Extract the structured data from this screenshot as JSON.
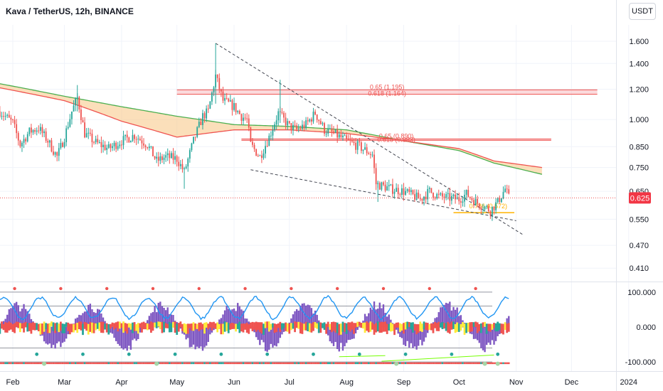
{
  "header": {
    "title": "Kava / TetherUS, 12h, BINANCE",
    "currency_button": "USDT"
  },
  "colors": {
    "up": "#26a69a",
    "down": "#ef5350",
    "ma_fast": "#ef5350",
    "ma_slow": "#4caf50",
    "fill": "#f8c98c",
    "fib_band": "#f8b9bd",
    "purple": "#7e57c2",
    "osc_blue": "#2196f3"
  },
  "chart_data": [
    {
      "type": "candlestick",
      "title": "Kava / TetherUS, 12h, BINANCE",
      "y_scale": "log",
      "ylim": [
        0.38,
        1.75
      ],
      "y_ticks": [
        "1.600",
        "1.400",
        "1.200",
        "1.000",
        "0.850",
        "0.750",
        "0.650",
        "0.550",
        "0.470",
        "0.410"
      ],
      "x_ticks": [
        "Feb",
        "Mar",
        "Apr",
        "May",
        "Jun",
        "Jul",
        "Aug",
        "Sep",
        "Oct",
        "Nov",
        "Dec",
        "2024"
      ],
      "last_price": "0.625",
      "price_path": [
        [
          "Jan 25",
          1.05
        ],
        [
          "Feb 1",
          0.98
        ],
        [
          "Feb 5",
          0.86
        ],
        [
          "Feb 10",
          0.93
        ],
        [
          "Feb 15",
          0.95
        ],
        [
          "Feb 20",
          0.88
        ],
        [
          "Feb 25",
          0.8
        ],
        [
          "Mar 1",
          0.9
        ],
        [
          "Mar 5",
          1.05
        ],
        [
          "Mar 8",
          1.14
        ],
        [
          "Mar 12",
          0.92
        ],
        [
          "Mar 18",
          0.87
        ],
        [
          "Mar 25",
          0.84
        ],
        [
          "Apr 1",
          0.88
        ],
        [
          "Apr 8",
          0.91
        ],
        [
          "Apr 15",
          0.86
        ],
        [
          "Apr 20",
          0.78
        ],
        [
          "Apr 25",
          0.8
        ],
        [
          "May 1",
          0.79
        ],
        [
          "May 5",
          0.73
        ],
        [
          "May 10",
          0.88
        ],
        [
          "May 15",
          1.02
        ],
        [
          "May 18",
          1.05
        ],
        [
          "May 22",
          1.3
        ],
        [
          "May 26",
          1.12
        ],
        [
          "Jun 1",
          1.08
        ],
        [
          "Jun 5",
          1.02
        ],
        [
          "Jun 8",
          1.0
        ],
        [
          "Jun 10",
          0.86
        ],
        [
          "Jun 15",
          0.8
        ],
        [
          "Jun 20",
          0.9
        ],
        [
          "Jun 25",
          1.04
        ],
        [
          "Jul 1",
          0.96
        ],
        [
          "Jul 5",
          0.94
        ],
        [
          "Jul 10",
          0.97
        ],
        [
          "Jul 15",
          1.04
        ],
        [
          "Jul 20",
          0.94
        ],
        [
          "Jul 25",
          0.92
        ],
        [
          "Aug 1",
          0.88
        ],
        [
          "Aug 8",
          0.85
        ],
        [
          "Aug 15",
          0.81
        ],
        [
          "Aug 17",
          0.68
        ],
        [
          "Aug 25",
          0.66
        ],
        [
          "Sep 1",
          0.65
        ],
        [
          "Sep 10",
          0.62
        ],
        [
          "Sep 15",
          0.65
        ],
        [
          "Sep 20",
          0.63
        ],
        [
          "Oct 1",
          0.62
        ],
        [
          "Oct 5",
          0.64
        ],
        [
          "Oct 10",
          0.61
        ],
        [
          "Oct 18",
          0.58
        ],
        [
          "Oct 22",
          0.61
        ],
        [
          "Oct 26",
          0.66
        ],
        [
          "Oct 28",
          0.625
        ]
      ],
      "ma_fast": [
        [
          "Jan 25",
          1.21
        ],
        [
          "Mar 1",
          1.12
        ],
        [
          "Apr 1",
          0.99
        ],
        [
          "May 1",
          0.9
        ],
        [
          "Jun 1",
          0.94
        ],
        [
          "Jul 1",
          0.94
        ],
        [
          "Aug 1",
          0.92
        ],
        [
          "Sep 1",
          0.88
        ],
        [
          "Oct 1",
          0.84
        ],
        [
          "Oct 20",
          0.78
        ],
        [
          "Nov 15",
          0.75
        ]
      ],
      "ma_slow": [
        [
          "Jan 25",
          1.24
        ],
        [
          "Mar 1",
          1.15
        ],
        [
          "Apr 1",
          1.08
        ],
        [
          "May 1",
          1.02
        ],
        [
          "Jun 1",
          0.97
        ],
        [
          "Jul 1",
          0.96
        ],
        [
          "Aug 1",
          0.94
        ],
        [
          "Sep 1",
          0.88
        ],
        [
          "Oct 1",
          0.83
        ],
        [
          "Oct 20",
          0.77
        ],
        [
          "Nov 15",
          0.72
        ]
      ],
      "fib_levels": [
        {
          "label": "0.65 (1.195)",
          "value": 1.195,
          "from": "May 1",
          "to": "Dec 15"
        },
        {
          "label": "0.618 (1.164)",
          "value": 1.164,
          "from": "May 1",
          "to": "Dec 15"
        },
        {
          "label": "0.65 (0.890)",
          "value": 0.89,
          "from": "Jun 5",
          "to": "Nov 20"
        },
        {
          "label": "0.618 (0.883)",
          "value": 0.883,
          "from": "Jun 5",
          "to": "Nov 20"
        },
        {
          "label": "0.786 (0.572)",
          "value": 0.572,
          "from": "Sep 28",
          "to": "Oct 31"
        }
      ],
      "trendlines": [
        {
          "from": [
            "May 22",
            1.58
          ],
          "to": [
            "Nov 5",
            0.5
          ]
        },
        {
          "from": [
            "Jun 10",
            0.74
          ],
          "to": [
            "Nov 1",
            0.545
          ]
        }
      ]
    },
    {
      "type": "line",
      "y_ticks": [
        "100.000",
        "0.000",
        "-100.000"
      ],
      "ylim": [
        -118,
        122
      ]
    }
  ]
}
